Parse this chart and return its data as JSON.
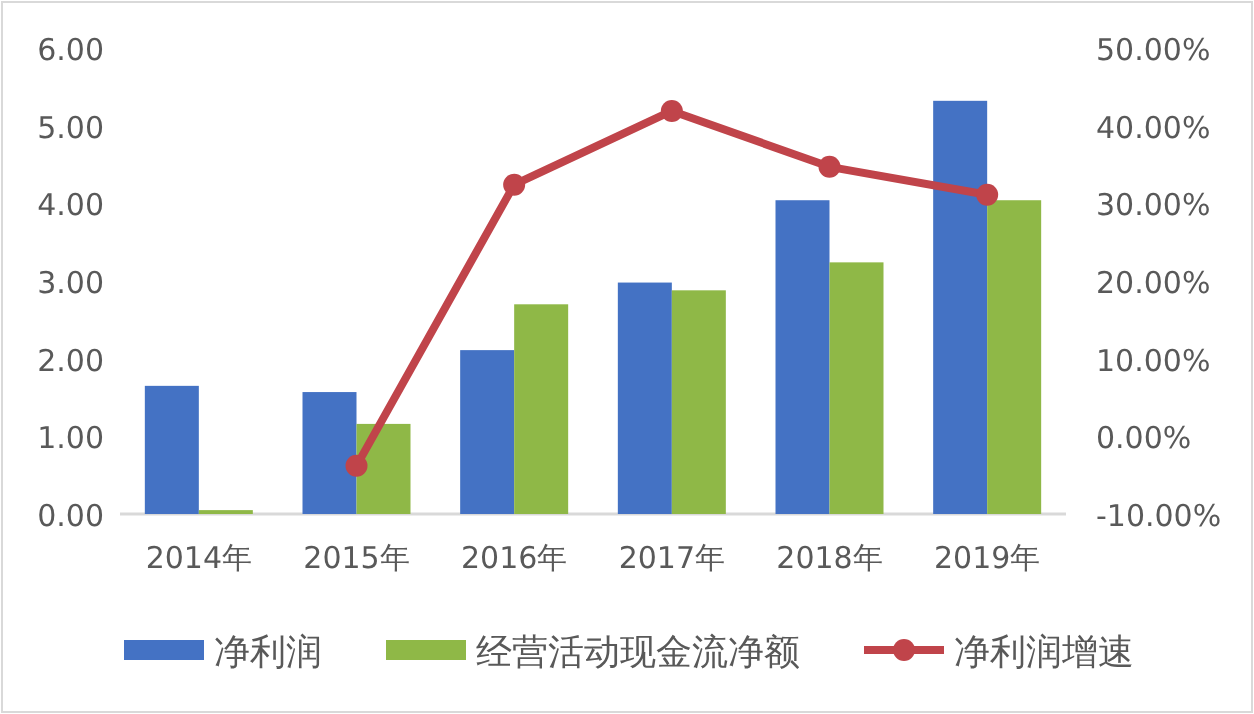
{
  "chart_data": {
    "type": "bar",
    "categories": [
      "2014年",
      "2015年",
      "2016年",
      "2017年",
      "2018年",
      "2019年"
    ],
    "series": [
      {
        "name": "净利润",
        "color": "#4472c4",
        "values": [
          1.65,
          1.57,
          2.11,
          2.98,
          4.04,
          5.32
        ]
      },
      {
        "name": "经营活动现金流净额",
        "color": "#8fb847",
        "values": [
          0.05,
          1.16,
          2.7,
          2.88,
          3.24,
          4.04
        ]
      },
      {
        "name": "净利润增速",
        "type": "line",
        "axis": "y2",
        "color": "#c0444a",
        "marker": "circle",
        "values": [
          null,
          -3.8,
          32.4,
          41.9,
          34.7,
          31.1
        ]
      }
    ],
    "ylim": [
      0,
      6
    ],
    "yticks": [
      {
        "value": 0,
        "label": "0.00"
      },
      {
        "value": 1,
        "label": "1.00"
      },
      {
        "value": 2,
        "label": "2.00"
      },
      {
        "value": 3,
        "label": "3.00"
      },
      {
        "value": 4,
        "label": "4.00"
      },
      {
        "value": 5,
        "label": "5.00"
      },
      {
        "value": 6,
        "label": "6.00"
      }
    ],
    "y2lim": [
      -10,
      50
    ],
    "y2ticks": [
      {
        "value": -10,
        "label": "-10.00%"
      },
      {
        "value": 0,
        "label": "0.00%"
      },
      {
        "value": 10,
        "label": "10.00%"
      },
      {
        "value": 20,
        "label": "20.00%"
      },
      {
        "value": 30,
        "label": "30.00%"
      },
      {
        "value": 40,
        "label": "40.00%"
      },
      {
        "value": 50,
        "label": "50.00%"
      }
    ],
    "legend": "bottom"
  }
}
